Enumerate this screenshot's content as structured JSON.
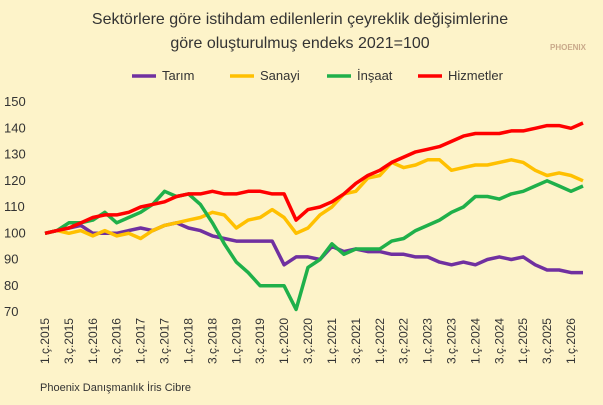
{
  "chart_data": {
    "type": "line",
    "title": [
      "Sektörlere göre istihdam edilenlerin çeyreklik değişimlerine",
      "göre oluşturulmuş endeks 2021=100"
    ],
    "logo": "PHOENIX",
    "source": "Phoenix Danışmanlık İris Cibre",
    "categories": [
      "1.ç.2015",
      null,
      "3.ç.2015",
      null,
      "1.ç.2016",
      null,
      "3.ç.2016",
      null,
      "1.ç.2017",
      null,
      "3.ç.2017",
      null,
      "1.ç.2018",
      null,
      "3.ç.2018",
      null,
      "1.ç.2019",
      null,
      "3.ç.2019",
      null,
      "1.ç.2020",
      null,
      "3.ç.2020",
      null,
      "1.ç.2021",
      null,
      "3.ç.2021",
      null,
      "1.ç.2022",
      null,
      "3.ç.2022",
      null,
      "1.ç.2023",
      null,
      "3.ç.2023",
      null,
      "1.ç.2024",
      null,
      "3.ç.2024",
      null,
      "1.ç.2025",
      null,
      "3.ç.2025",
      null,
      "1.ç.2026",
      null
    ],
    "series": [
      {
        "name": "Tarım",
        "color": "#7030a0",
        "values": [
          100,
          101,
          102,
          103,
          100,
          100,
          100,
          101,
          102,
          101,
          103,
          104,
          102,
          101,
          99,
          98,
          97,
          97,
          97,
          97,
          88,
          91,
          91,
          90,
          95,
          93,
          94,
          93,
          93,
          92,
          92,
          91,
          91,
          89,
          88,
          89,
          88,
          90,
          91,
          90,
          91,
          88,
          86,
          86,
          85,
          85
        ]
      },
      {
        "name": "Sanayi",
        "color": "#ffc000",
        "values": [
          100,
          101,
          100,
          101,
          99,
          101,
          99,
          100,
          98,
          101,
          103,
          104,
          105,
          106,
          108,
          107,
          102,
          105,
          106,
          109,
          106,
          100,
          102,
          107,
          110,
          115,
          116,
          121,
          122,
          127,
          125,
          126,
          128,
          128,
          124,
          125,
          126,
          126,
          127,
          128,
          127,
          124,
          122,
          123,
          122,
          120
        ]
      },
      {
        "name": "İnşaat",
        "color": "#1fb04a",
        "values": [
          100,
          101,
          104,
          104,
          105,
          108,
          104,
          106,
          108,
          111,
          116,
          114,
          115,
          111,
          104,
          96,
          89,
          85,
          80,
          80,
          80,
          71,
          87,
          90,
          96,
          92,
          94,
          94,
          94,
          97,
          98,
          101,
          103,
          105,
          108,
          110,
          114,
          114,
          113,
          115,
          116,
          118,
          120,
          118,
          116,
          118
        ]
      },
      {
        "name": "Hizmetler",
        "color": "#ff0000",
        "values": [
          100,
          101,
          102,
          104,
          106,
          107,
          107,
          108,
          110,
          111,
          112,
          114,
          115,
          115,
          116,
          115,
          115,
          116,
          116,
          115,
          115,
          105,
          109,
          110,
          112,
          115,
          119,
          122,
          124,
          127,
          129,
          131,
          132,
          133,
          135,
          137,
          138,
          138,
          138,
          139,
          139,
          140,
          141,
          141,
          140,
          142
        ]
      }
    ],
    "ylim": [
      70,
      150
    ],
    "yticks": [
      70,
      80,
      90,
      100,
      110,
      120,
      130,
      140,
      150
    ],
    "grid": false
  }
}
